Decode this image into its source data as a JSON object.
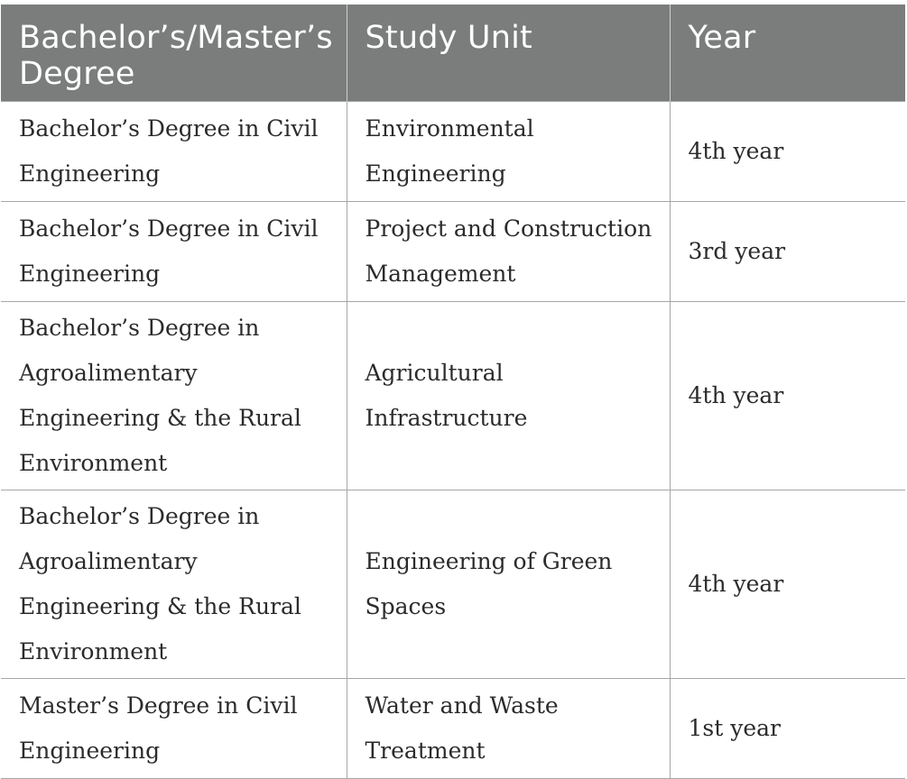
{
  "table": {
    "headers": [
      "Bachelor’s/Master’s Degree",
      "Study Unit",
      "Year"
    ],
    "rows": [
      [
        "Bachelor’s Degree in Civil Engineering",
        "Environmental Engineering",
        "4th year"
      ],
      [
        "Bachelor’s Degree in Civil Engineering",
        "Project and Construction Management",
        "3rd year"
      ],
      [
        "Bachelor’s Degree in Agroalimentary Engineering & the Rural Environment",
        "Agricultural Infrastructure",
        "4th year"
      ],
      [
        "Bachelor’s Degree in Agroalimentary Engineering & the Rural Environment",
        "Engineering of Green Spaces",
        "4th year"
      ],
      [
        "Master’s Degree in Civil Engineering",
        "Water and Waste Treatment",
        "1st year"
      ]
    ],
    "colors": {
      "header_background": "#7b7c7c",
      "header_text": "#ffffff",
      "body_text": "#2b2b2b",
      "grid_line": "#a7a7a7"
    }
  }
}
